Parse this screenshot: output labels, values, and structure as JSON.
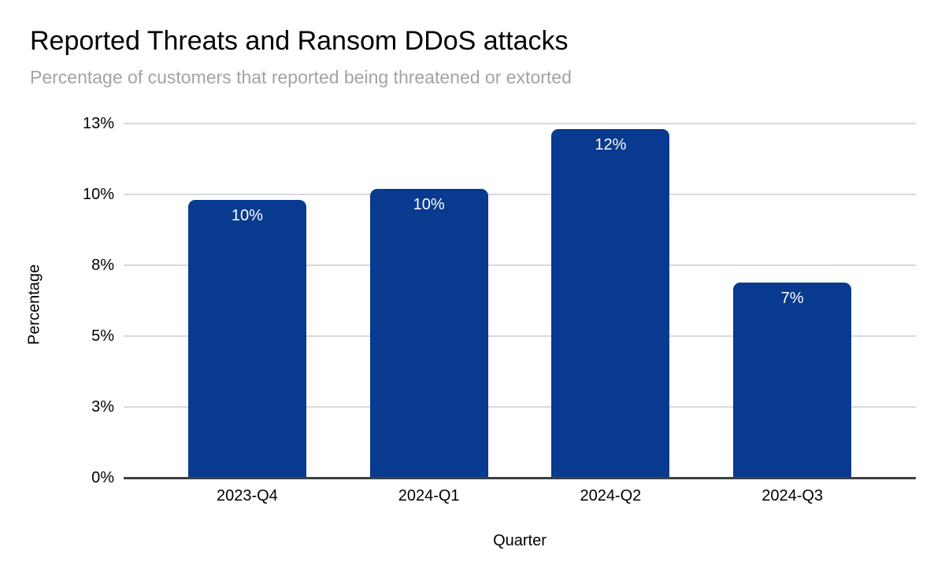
{
  "chart_data": {
    "type": "bar",
    "title": "Reported Threats and Ransom DDoS attacks",
    "subtitle": "Percentage of customers that reported being threatened or extorted",
    "xlabel": "Quarter",
    "ylabel": "Percentage",
    "categories": [
      "2023-Q4",
      "2024-Q1",
      "2024-Q2",
      "2024-Q3"
    ],
    "values": [
      9.8,
      10.2,
      12.3,
      6.9
    ],
    "bar_labels": [
      "10%",
      "10%",
      "12%",
      "7%"
    ],
    "ylim": [
      0,
      12.5
    ],
    "yticks": [
      {
        "value": 0,
        "label": "0%"
      },
      {
        "value": 2.5,
        "label": "3%"
      },
      {
        "value": 5,
        "label": "5%"
      },
      {
        "value": 7.5,
        "label": "8%"
      },
      {
        "value": 10,
        "label": "10%"
      },
      {
        "value": 12.5,
        "label": "13%"
      }
    ],
    "grid": true,
    "legend": false,
    "colors": {
      "bar": "#083a8f",
      "bar_label": "#ffffff",
      "grid": "#d9d9d9",
      "axis": "#3c4043",
      "tick": "#000000",
      "subtitle": "#a3a3a3",
      "background": "#ffffff"
    }
  }
}
